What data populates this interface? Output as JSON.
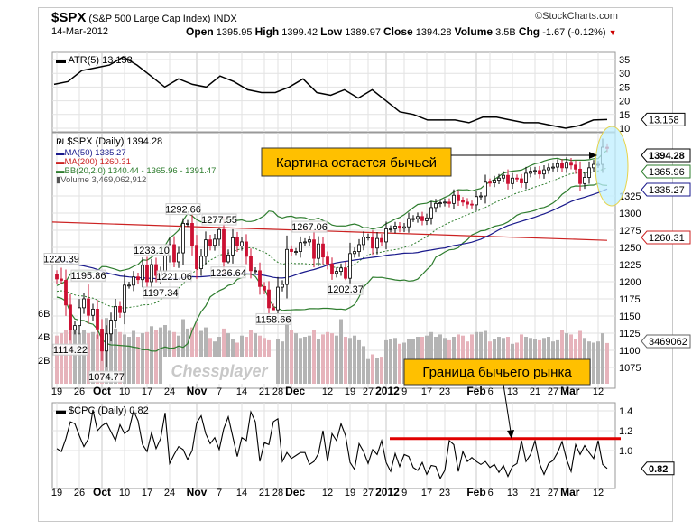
{
  "header": {
    "symbol": "$SPX",
    "name": "(S&P 500 Large Cap Index)",
    "exchange": "INDX",
    "copyright": "©StockCharts.com",
    "date": "14-Mar-2012",
    "open_label": "Open",
    "open": "1395.95",
    "high_label": "High",
    "high": "1399.42",
    "low_label": "Low",
    "low": "1389.97",
    "close_label": "Close",
    "close": "1394.28",
    "volume_label": "Volume",
    "volume": "3.5B",
    "chg_label": "Chg",
    "chg": "-1.67 (-0.12%)"
  },
  "colors": {
    "up": "#ffffff",
    "down": "#cc1133",
    "ma50": "#1a1a8c",
    "ma200": "#cc2222",
    "bb": "#2e7d2e",
    "vol_up": "#b4b4b4",
    "vol_down": "#e6b3bb",
    "annotation": "#ffc000",
    "ellipse": "#bfefff",
    "cpc_line": "#e00000"
  },
  "chart_data": [
    {
      "type": "line",
      "title": "ATR(5) 13.158",
      "ylim": [
        10,
        35
      ],
      "yticks": [
        10,
        15,
        20,
        25,
        30,
        35
      ],
      "last_label": "13.158",
      "values": [
        26,
        27,
        31,
        32,
        33,
        36,
        33,
        29,
        25,
        28,
        26,
        25,
        29,
        27,
        24,
        23,
        23,
        25,
        28,
        23,
        22,
        24,
        21,
        24,
        20,
        16,
        15,
        13,
        13,
        13,
        12,
        14,
        14,
        13,
        12,
        12,
        11,
        10,
        11,
        13,
        13.158
      ]
    },
    {
      "type": "candlestick",
      "title": "$SPX (Daily) 1394.28",
      "legend": [
        "MA(50) 1335.27",
        "MA(200) 1260.31",
        "BB(20,2.0) 1340.44 - 1365.96 - 1391.47",
        "Volume 3,469,062,912"
      ],
      "ylim": [
        1060,
        1410
      ],
      "yticks": [
        1075,
        1100,
        1125,
        1150,
        1175,
        1200,
        1225,
        1250,
        1275,
        1300,
        1325
      ],
      "first_open": 1210,
      "closes": [
        1204,
        1202,
        1166,
        1130,
        1136,
        1162,
        1175,
        1151,
        1160,
        1131,
        1099,
        1124,
        1144,
        1164,
        1155,
        1195,
        1195,
        1207,
        1203,
        1224,
        1200,
        1225,
        1209,
        1215,
        1238,
        1254,
        1229,
        1242,
        1285,
        1285,
        1253,
        1219,
        1237,
        1261,
        1253,
        1262,
        1276,
        1229,
        1239,
        1264,
        1252,
        1258,
        1237,
        1216,
        1216,
        1193,
        1188,
        1162,
        1159,
        1192,
        1196,
        1247,
        1244,
        1244,
        1257,
        1258,
        1261,
        1234,
        1255,
        1236,
        1226,
        1212,
        1215,
        1220,
        1205,
        1241,
        1244,
        1254,
        1265,
        1265,
        1249,
        1263,
        1258,
        1277,
        1277,
        1281,
        1278,
        1280,
        1292,
        1292,
        1295,
        1289,
        1293,
        1308,
        1314,
        1315,
        1316,
        1314,
        1326,
        1318,
        1316,
        1313,
        1312,
        1324,
        1325,
        1345,
        1344,
        1348,
        1351,
        1355,
        1343,
        1351,
        1350,
        1344,
        1358,
        1361,
        1362,
        1357,
        1363,
        1366,
        1367,
        1372,
        1366,
        1374,
        1370,
        1364,
        1343,
        1352,
        1366,
        1371,
        1371,
        1396,
        1394.28
      ],
      "volume_billions": [
        4.1,
        4.3,
        4.6,
        5.5,
        4.8,
        4.3,
        4.6,
        4.3,
        4.4,
        4.2,
        4.4,
        5.6,
        5.1,
        4.7,
        4.4,
        4.2,
        4.0,
        4.5,
        4.0,
        4.3,
        4.4,
        4.9,
        4.6,
        4.8,
        5.0,
        4.5,
        4.4,
        4.1,
        5.5,
        4.7,
        4.8,
        5.2,
        4.5,
        4.8,
        3.9,
        3.6,
        4.0,
        4.7,
        4.3,
        3.8,
        3.5,
        4.1,
        4.0,
        4.6,
        4.3,
        4.1,
        3.9,
        3.7,
        2.0,
        3.8,
        3.6,
        5.8,
        4.6,
        4.3,
        3.9,
        4.0,
        4.1,
        4.6,
        3.8,
        4.2,
        4.4,
        4.3,
        4.1,
        5.5,
        4.0,
        3.9,
        4.1,
        3.7,
        3.2,
        2.1,
        2.5,
        2.2,
        2.3,
        3.7,
        3.8,
        3.9,
        3.4,
        3.5,
        3.8,
        3.8,
        4.0,
        4.0,
        4.1,
        4.4,
        4.0,
        4.2,
        3.9,
        3.7,
        4.0,
        4.2,
        4.1,
        3.6,
        4.2,
        4.4,
        4.4,
        4.5,
        3.6,
        3.8,
        4.0,
        3.9,
        4.0,
        3.4,
        3.5,
        4.2,
        4.0,
        3.9,
        3.8,
        3.7,
        3.9,
        4.0,
        3.6,
        3.7,
        4.6,
        4.3,
        4.2,
        3.8,
        4.5,
        3.9,
        3.6,
        3.5,
        3.6,
        4.3,
        3.469
      ],
      "volume_ticks": [
        "2B",
        "4B",
        "6B"
      ],
      "ma200_range": [
        1287,
        1260.31
      ],
      "pivots": [
        {
          "label": "1220.39",
          "day": 1,
          "kind": "high"
        },
        {
          "label": "1114.22",
          "day": 3,
          "kind": "low"
        },
        {
          "label": "1195.86",
          "day": 7,
          "kind": "high"
        },
        {
          "label": "1074.77",
          "day": 11,
          "kind": "low"
        },
        {
          "label": "1233.10",
          "day": 21,
          "kind": "high"
        },
        {
          "label": "1197.34",
          "day": 23,
          "kind": "low"
        },
        {
          "label": "1221.06",
          "day": 26,
          "kind": "low"
        },
        {
          "label": "1292.66",
          "day": 28,
          "kind": "high"
        },
        {
          "label": "1277.55",
          "day": 36,
          "kind": "high"
        },
        {
          "label": "1226.64",
          "day": 38,
          "kind": "low"
        },
        {
          "label": "1158.66",
          "day": 48,
          "kind": "low"
        },
        {
          "label": "1267.06",
          "day": 56,
          "kind": "high"
        },
        {
          "label": "1202.37",
          "day": 64,
          "kind": "low"
        }
      ],
      "value_tags": [
        {
          "label": "1394.28",
          "value": 1394.28,
          "series": "close"
        },
        {
          "label": "1365.96",
          "value": 1365.96,
          "series": "bb"
        },
        {
          "label": "1335.27",
          "value": 1335.27,
          "series": "ma50"
        },
        {
          "label": "1260.31",
          "value": 1260.31,
          "series": "ma200"
        }
      ],
      "volume_tag": "3469062"
    },
    {
      "type": "line",
      "title": "$CPC (Daily) 0.82",
      "ylim": [
        0.7,
        1.5
      ],
      "yticks": [
        1.0,
        1.2,
        1.4
      ],
      "last_label": "0.82",
      "bull_line": 1.12,
      "values": [
        1.02,
        0.99,
        1.12,
        1.29,
        1.27,
        1.15,
        1.04,
        1.12,
        1.41,
        1.2,
        1.25,
        1.28,
        1.19,
        1.1,
        1.26,
        1.17,
        1.21,
        1.4,
        1.3,
        1.06,
        0.99,
        1.18,
        1.02,
        1.12,
        1.38,
        0.87,
        0.96,
        1.04,
        1.01,
        0.91,
        1.0,
        1.28,
        1.35,
        1.17,
        1.07,
        1.13,
        1.01,
        1.22,
        1.34,
        1.14,
        0.94,
        1.13,
        1.1,
        1.39,
        1.29,
        0.89,
        1.08,
        1.06,
        1.29,
        1.32,
        0.89,
        0.98,
        0.92,
        0.95,
        0.98,
        0.98,
        0.86,
        0.89,
        0.97,
        1.2,
        0.89,
        1.17,
        1.1,
        1.27,
        1.15,
        0.88,
        0.81,
        1.07,
        0.99,
        0.87,
        1.01,
        0.96,
        1.1,
        0.88,
        0.79,
        0.97,
        0.84,
        0.96,
        0.94,
        0.83,
        0.8,
        0.88,
        0.76,
        0.85,
        0.84,
        0.72,
        0.8,
        1.1,
        1.06,
        0.79,
        0.99,
        0.89,
        0.93,
        0.89,
        0.86,
        0.89,
        0.83,
        0.86,
        0.78,
        0.85,
        0.74,
        0.84,
        0.87,
        1.1,
        0.89,
        0.96,
        1.1,
        0.87,
        0.76,
        0.87,
        0.9,
        0.98,
        1.09,
        0.91,
        0.79,
        1.06,
        0.96,
        1.05,
        0.98,
        0.92,
        1.1,
        0.86,
        0.82
      ]
    }
  ],
  "x_axis": [
    {
      "text": "19",
      "day": 0
    },
    {
      "text": "26",
      "day": 5
    },
    {
      "text": "Oct",
      "day": 10,
      "bold": true
    },
    {
      "text": "10",
      "day": 15
    },
    {
      "text": "17",
      "day": 20
    },
    {
      "text": "24",
      "day": 25
    },
    {
      "text": "Nov",
      "day": 31,
      "bold": true
    },
    {
      "text": "7",
      "day": 36
    },
    {
      "text": "14",
      "day": 41
    },
    {
      "text": "21",
      "day": 46
    },
    {
      "text": "28",
      "day": 49
    },
    {
      "text": "Dec",
      "day": 52,
      "bold": true
    },
    {
      "text": "12",
      "day": 60
    },
    {
      "text": "19",
      "day": 65
    },
    {
      "text": "27",
      "day": 69
    },
    {
      "text": "2012",
      "day": 73,
      "bold": true
    },
    {
      "text": "9",
      "day": 77
    },
    {
      "text": "17",
      "day": 82
    },
    {
      "text": "23",
      "day": 86
    },
    {
      "text": "Feb",
      "day": 93,
      "bold": true
    },
    {
      "text": "6",
      "day": 96
    },
    {
      "text": "13",
      "day": 101
    },
    {
      "text": "21",
      "day": 106
    },
    {
      "text": "27",
      "day": 110
    },
    {
      "text": "Mar",
      "day": 113,
      "bold": true
    },
    {
      "text": "12",
      "day": 120
    }
  ],
  "annotations": {
    "bullish_picture": "Картина остается бычьей",
    "bull_market_border": "Граница бычьего рынка",
    "watermark": "Chessplayer"
  }
}
